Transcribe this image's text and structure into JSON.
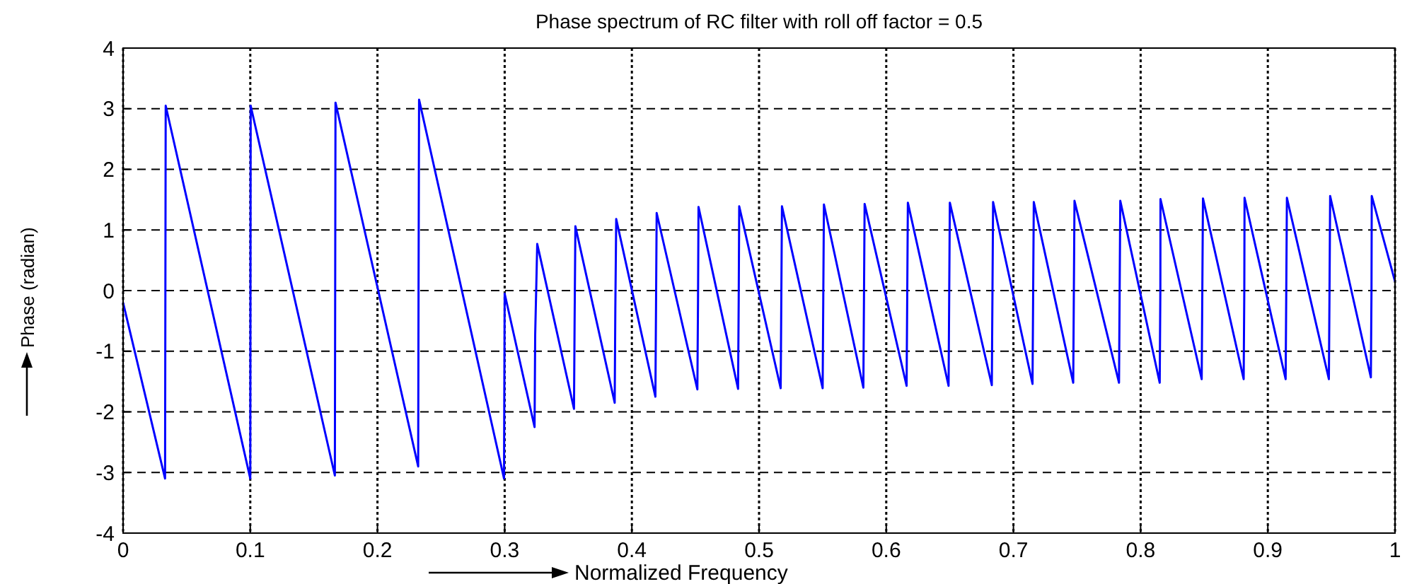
{
  "chart_data": {
    "type": "line",
    "title": "Phase spectrum of RC filter with roll off factor = 0.5",
    "xlabel": "Normalized Frequency",
    "ylabel": "Phase (radian)",
    "xlim": [
      0,
      1
    ],
    "xticks": [
      0,
      0.1,
      0.2,
      0.3,
      0.4,
      0.5,
      0.6,
      0.7,
      0.8,
      0.9,
      1
    ],
    "ylim": [
      -4,
      4
    ],
    "yticks": [
      -4,
      -3,
      -2,
      -1,
      0,
      1,
      2,
      3,
      4
    ],
    "grid": true,
    "line_style": "solid",
    "series": [
      {
        "color": "#0000ff",
        "x": [
          0,
          0.033,
          0.0335,
          0.1,
          0.1003,
          0.1665,
          0.167,
          0.232,
          0.2323,
          0.2327,
          0.2995,
          0.3,
          0.3235,
          0.324,
          0.3256,
          0.3545,
          0.355,
          0.3556,
          0.3865,
          0.387,
          0.3877,
          0.4185,
          0.419,
          0.4195,
          0.4515,
          0.452,
          0.4524,
          0.4835,
          0.484,
          0.4844,
          0.517,
          0.5175,
          0.518,
          0.55,
          0.5505,
          0.551,
          0.582,
          0.5825,
          0.583,
          0.616,
          0.6165,
          0.617,
          0.649,
          0.6495,
          0.65,
          0.683,
          0.6835,
          0.684,
          0.715,
          0.7155,
          0.716,
          0.747,
          0.7475,
          0.748,
          0.783,
          0.7835,
          0.784,
          0.815,
          0.8155,
          0.8156,
          0.848,
          0.8485,
          0.849,
          0.881,
          0.8815,
          0.8817,
          0.914,
          0.9145,
          0.915,
          0.948,
          0.9485,
          0.949,
          0.981,
          0.9815,
          0.9817,
          1
        ],
        "values": [
          -0.2,
          -3.1,
          3.05,
          -3.1,
          3.05,
          -3.05,
          3.1,
          -2.9,
          0.1,
          3.15,
          -3.1,
          -0.05,
          -2.25,
          -0.72,
          0.77,
          -1.95,
          -0.46,
          1.06,
          -1.85,
          -0.3,
          1.18,
          -1.75,
          -0.25,
          1.28,
          -1.63,
          -0.2,
          1.38,
          -1.62,
          -0.15,
          1.39,
          -1.61,
          -0.12,
          1.39,
          -1.61,
          -0.1,
          1.42,
          -1.6,
          -0.1,
          1.43,
          -1.57,
          -0.08,
          1.45,
          -1.57,
          -0.05,
          1.45,
          -1.56,
          -0.05,
          1.46,
          -1.54,
          -0.03,
          1.46,
          -1.52,
          -0.02,
          1.48,
          -1.52,
          0,
          1.48,
          -1.52,
          0,
          1.51,
          -1.46,
          0,
          1.52,
          -1.46,
          0,
          1.53,
          -1.46,
          0,
          1.53,
          -1.46,
          0,
          1.56,
          -1.43,
          0,
          1.56,
          0.15
        ]
      }
    ]
  }
}
